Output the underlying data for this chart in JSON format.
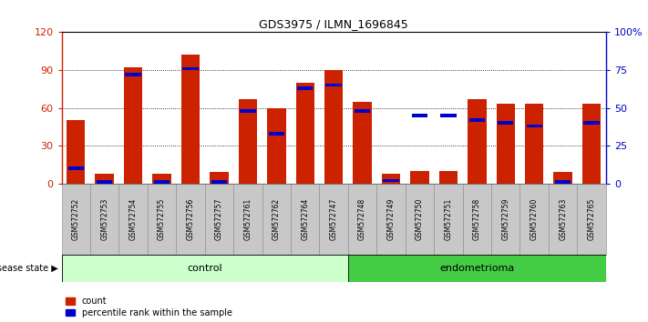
{
  "title": "GDS3975 / ILMN_1696845",
  "samples": [
    "GSM572752",
    "GSM572753",
    "GSM572754",
    "GSM572755",
    "GSM572756",
    "GSM572757",
    "GSM572761",
    "GSM572762",
    "GSM572764",
    "GSM572747",
    "GSM572748",
    "GSM572749",
    "GSM572750",
    "GSM572751",
    "GSM572758",
    "GSM572759",
    "GSM572760",
    "GSM572763",
    "GSM572765"
  ],
  "counts": [
    50,
    8,
    92,
    8,
    102,
    9,
    67,
    60,
    80,
    90,
    65,
    8,
    10,
    10,
    67,
    63,
    63,
    9,
    63
  ],
  "percentile_ranks": [
    10,
    1,
    72,
    1,
    76,
    1,
    48,
    33,
    63,
    65,
    48,
    2,
    45,
    45,
    42,
    40,
    38,
    1,
    40
  ],
  "group_labels": [
    "control",
    "endometrioma"
  ],
  "group_sizes": [
    10,
    9
  ],
  "bar_color": "#CC2200",
  "marker_color": "#0000CC",
  "control_bg": "#CCFFCC",
  "endometrioma_bg": "#44CC44",
  "label_bg": "#C8C8C8",
  "ylim_left": [
    0,
    120
  ],
  "ylim_right": [
    0,
    100
  ],
  "yticks_left": [
    0,
    30,
    60,
    90,
    120
  ],
  "yticks_right": [
    0,
    25,
    50,
    75,
    100
  ],
  "ytick_labels_right": [
    "0",
    "25",
    "50",
    "75",
    "100%"
  ],
  "left_axis_color": "#CC2200",
  "right_axis_color": "#0000CC",
  "disease_state_label": "disease state"
}
